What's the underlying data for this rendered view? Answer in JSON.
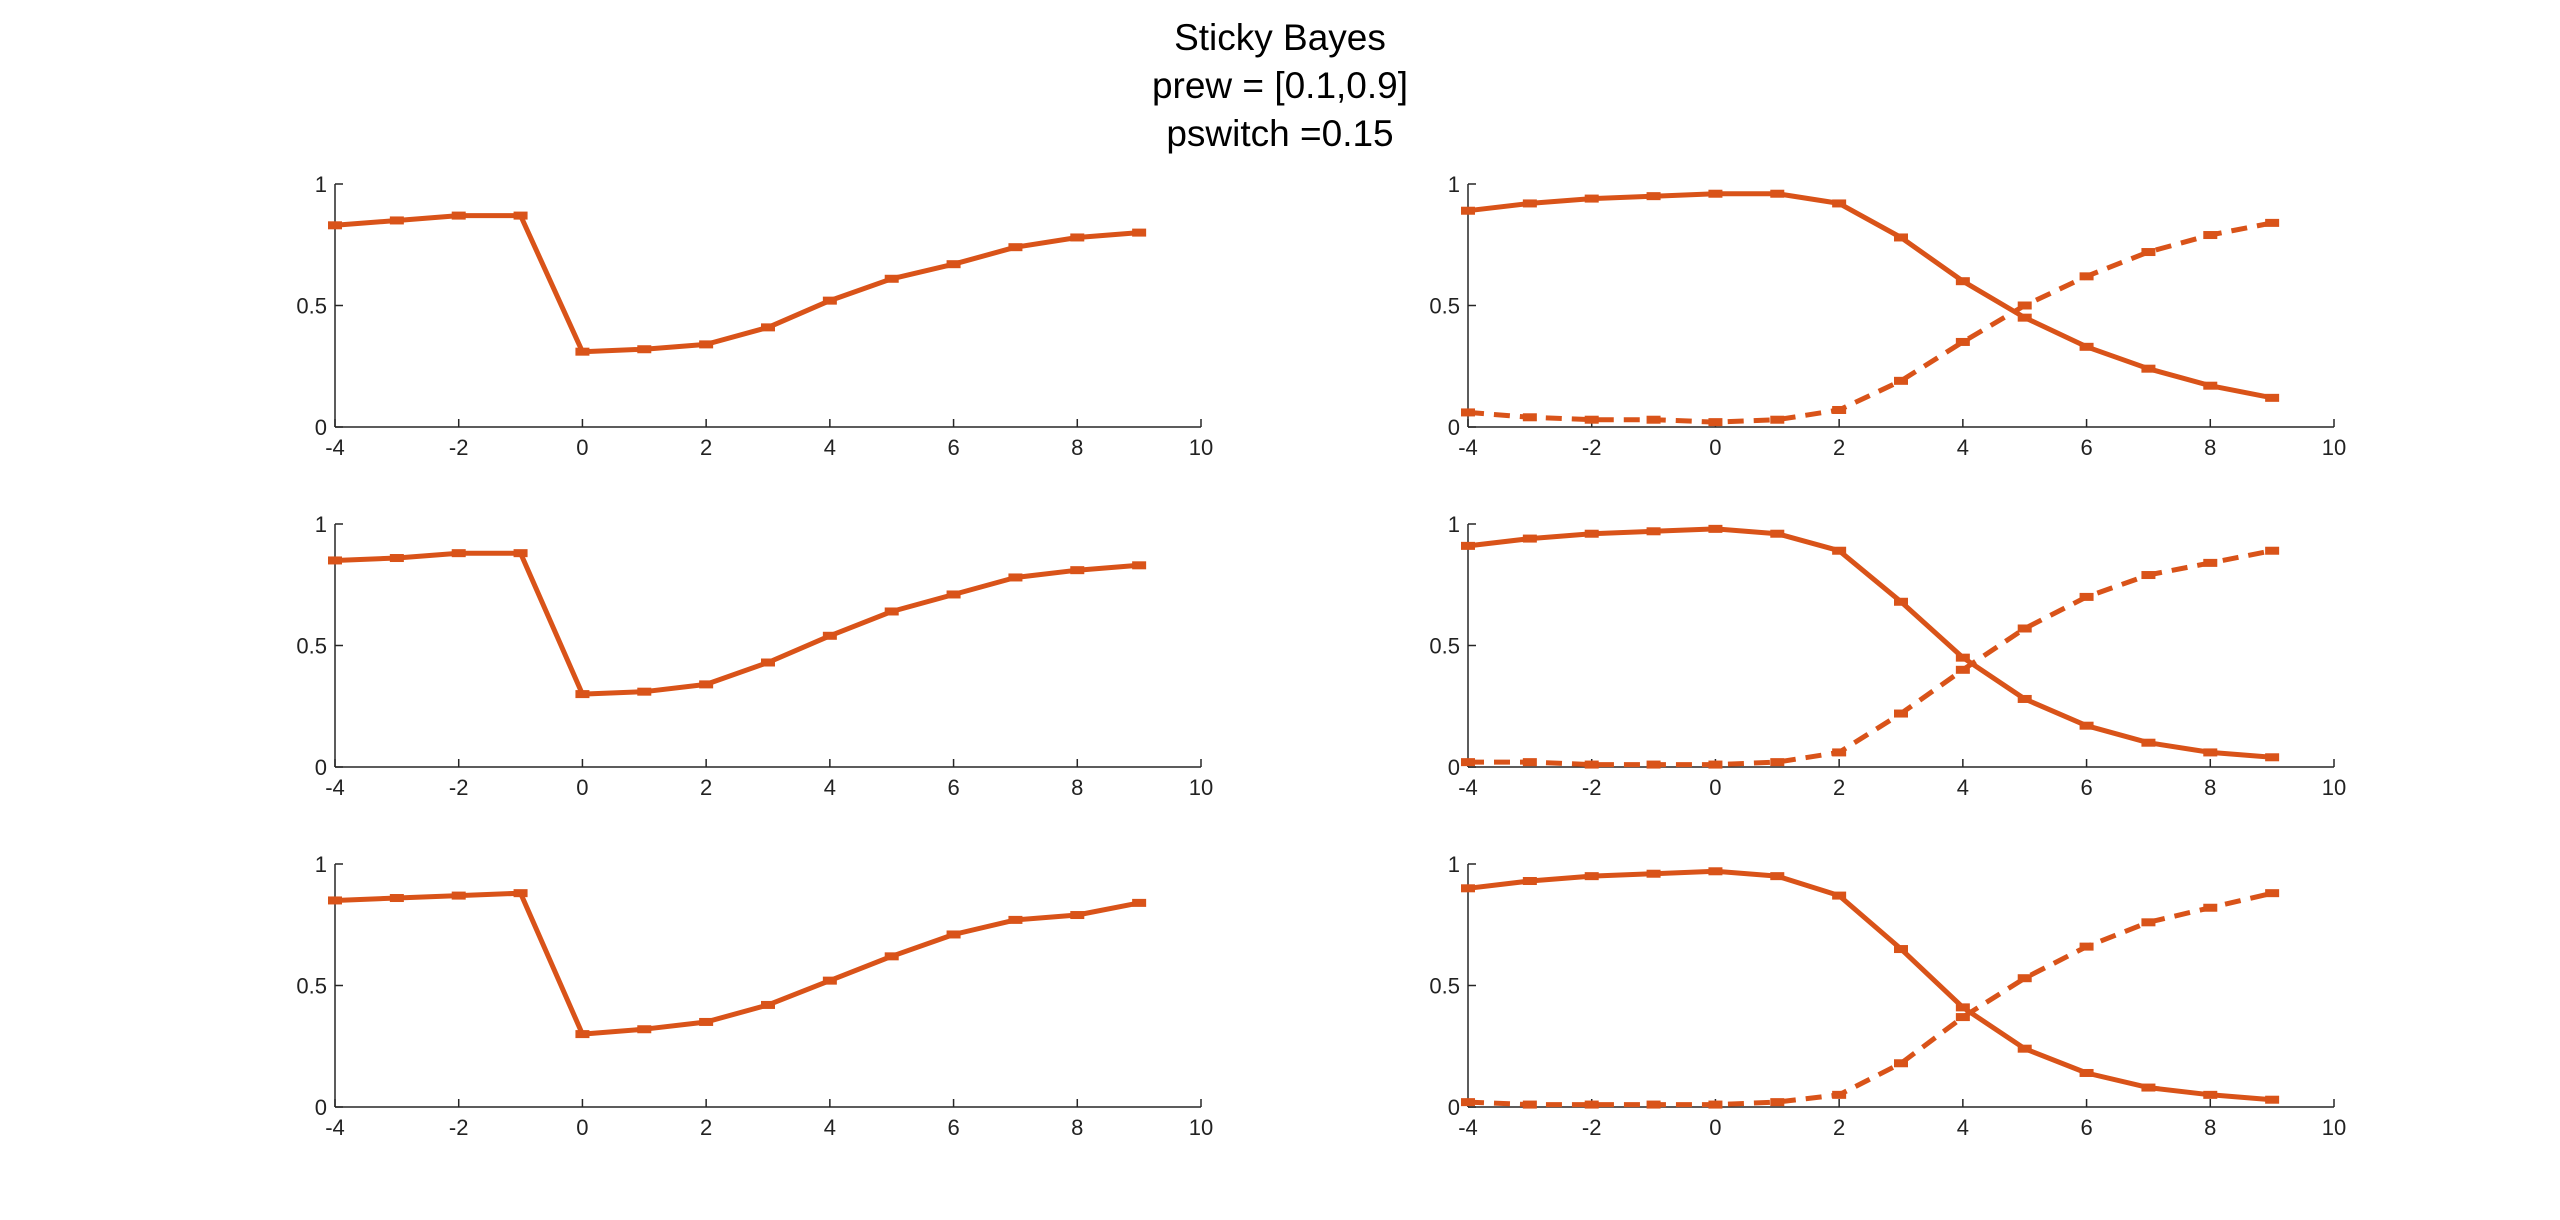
{
  "figure": {
    "title_lines": [
      "Sticky Bayes",
      "prew = [0.1,0.9]",
      "pswitch =0.15"
    ],
    "series_color": "#D95319"
  },
  "chart_data": [
    {
      "type": "line",
      "position": "row1-left",
      "x": [
        -4,
        -3,
        -2,
        -1,
        0,
        1,
        2,
        3,
        4,
        5,
        6,
        7,
        8,
        9
      ],
      "xlim": [
        -4,
        10
      ],
      "ylim": [
        0,
        1
      ],
      "xticks": [
        -4,
        -2,
        0,
        2,
        4,
        6,
        8,
        10
      ],
      "yticks": [
        0,
        0.5,
        1
      ],
      "grid": false,
      "series": [
        {
          "style": "solid",
          "marker": "error-bar",
          "values": [
            0.83,
            0.85,
            0.87,
            0.87,
            0.31,
            0.32,
            0.34,
            0.41,
            0.52,
            0.61,
            0.67,
            0.74,
            0.78,
            0.8
          ]
        }
      ]
    },
    {
      "type": "line",
      "position": "row1-right",
      "x": [
        -4,
        -3,
        -2,
        -1,
        0,
        1,
        2,
        3,
        4,
        5,
        6,
        7,
        8,
        9
      ],
      "xlim": [
        -4,
        10
      ],
      "ylim": [
        0,
        1
      ],
      "xticks": [
        -4,
        -2,
        0,
        2,
        4,
        6,
        8,
        10
      ],
      "yticks": [
        0,
        0.5,
        1
      ],
      "grid": false,
      "series": [
        {
          "style": "solid",
          "marker": "error-bar",
          "values": [
            0.89,
            0.92,
            0.94,
            0.95,
            0.96,
            0.96,
            0.92,
            0.78,
            0.6,
            0.45,
            0.33,
            0.24,
            0.17,
            0.12
          ]
        },
        {
          "style": "dashed",
          "marker": "error-bar",
          "values": [
            0.06,
            0.04,
            0.03,
            0.03,
            0.02,
            0.03,
            0.07,
            0.19,
            0.35,
            0.5,
            0.62,
            0.72,
            0.79,
            0.84
          ]
        }
      ]
    },
    {
      "type": "line",
      "position": "row2-left",
      "x": [
        -4,
        -3,
        -2,
        -1,
        0,
        1,
        2,
        3,
        4,
        5,
        6,
        7,
        8,
        9
      ],
      "xlim": [
        -4,
        10
      ],
      "ylim": [
        0,
        1
      ],
      "xticks": [
        -4,
        -2,
        0,
        2,
        4,
        6,
        8,
        10
      ],
      "yticks": [
        0,
        0.5,
        1
      ],
      "grid": false,
      "series": [
        {
          "style": "solid",
          "marker": "error-bar",
          "values": [
            0.85,
            0.86,
            0.88,
            0.88,
            0.3,
            0.31,
            0.34,
            0.43,
            0.54,
            0.64,
            0.71,
            0.78,
            0.81,
            0.83
          ]
        }
      ]
    },
    {
      "type": "line",
      "position": "row2-right",
      "x": [
        -4,
        -3,
        -2,
        -1,
        0,
        1,
        2,
        3,
        4,
        5,
        6,
        7,
        8,
        9
      ],
      "xlim": [
        -4,
        10
      ],
      "ylim": [
        0,
        1
      ],
      "xticks": [
        -4,
        -2,
        0,
        2,
        4,
        6,
        8,
        10
      ],
      "yticks": [
        0,
        0.5,
        1
      ],
      "grid": false,
      "series": [
        {
          "style": "solid",
          "marker": "error-bar",
          "values": [
            0.91,
            0.94,
            0.96,
            0.97,
            0.98,
            0.96,
            0.89,
            0.68,
            0.45,
            0.28,
            0.17,
            0.1,
            0.06,
            0.04
          ]
        },
        {
          "style": "dashed",
          "marker": "error-bar",
          "values": [
            0.02,
            0.02,
            0.01,
            0.01,
            0.01,
            0.02,
            0.06,
            0.22,
            0.4,
            0.57,
            0.7,
            0.79,
            0.84,
            0.89
          ]
        }
      ]
    },
    {
      "type": "line",
      "position": "row3-left",
      "x": [
        -4,
        -3,
        -2,
        -1,
        0,
        1,
        2,
        3,
        4,
        5,
        6,
        7,
        8,
        9
      ],
      "xlim": [
        -4,
        10
      ],
      "ylim": [
        0,
        1
      ],
      "xticks": [
        -4,
        -2,
        0,
        2,
        4,
        6,
        8,
        10
      ],
      "yticks": [
        0,
        0.5,
        1
      ],
      "grid": false,
      "series": [
        {
          "style": "solid",
          "marker": "error-bar",
          "values": [
            0.85,
            0.86,
            0.87,
            0.88,
            0.3,
            0.32,
            0.35,
            0.42,
            0.52,
            0.62,
            0.71,
            0.77,
            0.79,
            0.84
          ]
        }
      ]
    },
    {
      "type": "line",
      "position": "row3-right",
      "x": [
        -4,
        -3,
        -2,
        -1,
        0,
        1,
        2,
        3,
        4,
        5,
        6,
        7,
        8,
        9
      ],
      "xlim": [
        -4,
        10
      ],
      "ylim": [
        0,
        1
      ],
      "xticks": [
        -4,
        -2,
        0,
        2,
        4,
        6,
        8,
        10
      ],
      "yticks": [
        0,
        0.5,
        1
      ],
      "grid": false,
      "series": [
        {
          "style": "solid",
          "marker": "error-bar",
          "values": [
            0.9,
            0.93,
            0.95,
            0.96,
            0.97,
            0.95,
            0.87,
            0.65,
            0.41,
            0.24,
            0.14,
            0.08,
            0.05,
            0.03
          ]
        },
        {
          "style": "dashed",
          "marker": "error-bar",
          "values": [
            0.02,
            0.01,
            0.01,
            0.01,
            0.01,
            0.02,
            0.05,
            0.18,
            0.37,
            0.53,
            0.66,
            0.76,
            0.82,
            0.88
          ]
        }
      ]
    }
  ]
}
